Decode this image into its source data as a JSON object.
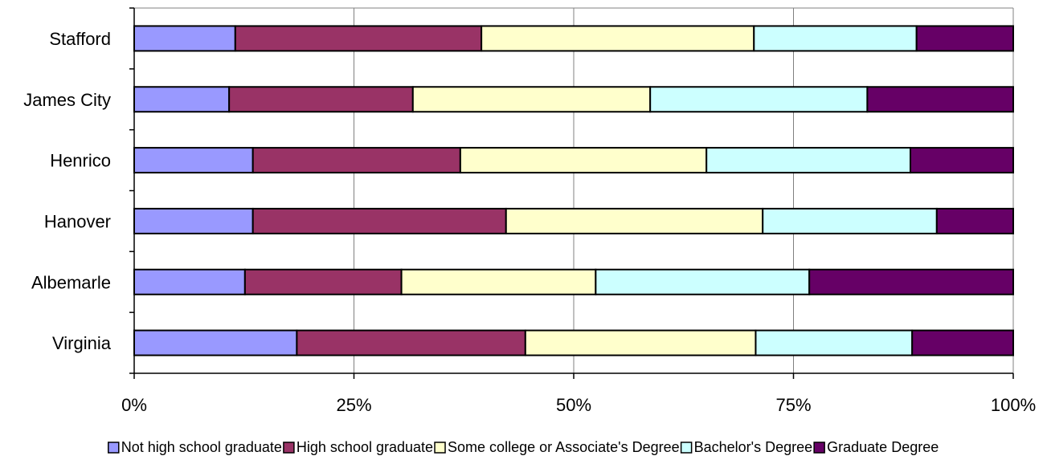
{
  "chart_data": {
    "type": "bar",
    "orientation": "horizontal",
    "stacking": "percent",
    "title": "",
    "xlabel": "",
    "ylabel": "",
    "xlim": [
      0,
      100
    ],
    "x_ticks": [
      0,
      25,
      50,
      75,
      100
    ],
    "x_tick_labels": [
      "0%",
      "25%",
      "50%",
      "75%",
      "100%"
    ],
    "grid": true,
    "legend_position": "bottom",
    "categories": [
      "Stafford",
      "James City",
      "Henrico",
      "Hanover",
      "Albemarle",
      "Virginia"
    ],
    "series": [
      {
        "name": "Not high school graduate",
        "color": "#9999ff",
        "values": [
          11.5,
          10.8,
          13.5,
          13.5,
          12.6,
          18.5
        ]
      },
      {
        "name": "High school graduate",
        "color": "#993366",
        "values": [
          28.0,
          20.9,
          23.6,
          28.8,
          17.8,
          26.0
        ]
      },
      {
        "name": "Some college or Associate's Degree",
        "color": "#ffffcc",
        "values": [
          31.0,
          27.0,
          28.0,
          29.2,
          22.1,
          26.2
        ]
      },
      {
        "name": "Bachelor's Degree",
        "color": "#ccffff",
        "values": [
          18.5,
          24.7,
          23.2,
          19.8,
          24.3,
          17.8
        ]
      },
      {
        "name": "Graduate Degree",
        "color": "#660066",
        "values": [
          11.0,
          16.6,
          11.7,
          8.7,
          23.2,
          11.5
        ]
      }
    ]
  }
}
